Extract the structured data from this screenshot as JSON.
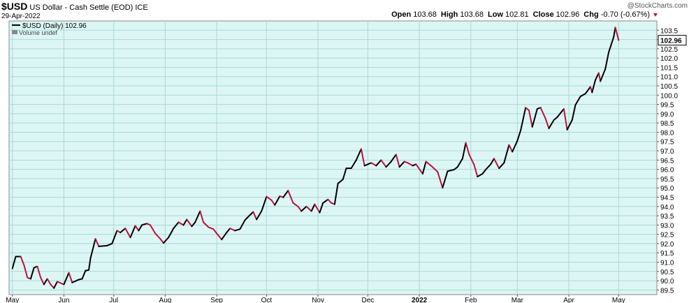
{
  "header": {
    "symbol": "$USD",
    "name": "US Dollar - Cash Settle (EOD) ICE",
    "date": "29-Apr-2022",
    "quote": [
      {
        "label": "Open",
        "value": "103.68"
      },
      {
        "label": "High",
        "value": "103.68"
      },
      {
        "label": "Low",
        "value": "102.81"
      },
      {
        "label": "Close",
        "value": "102.96"
      },
      {
        "label": "Chg",
        "value": "-0.70 (-0.67%)"
      }
    ],
    "watermark": "@StockCharts.com"
  },
  "chart_data": {
    "type": "line",
    "series": [
      {
        "name": "$USD (Daily) 102.96",
        "up_color": "#000000",
        "down_color": "#c0103a",
        "x": [
          0,
          2,
          5,
          7,
          9,
          11,
          13,
          15,
          17,
          19,
          21,
          23,
          25,
          27,
          31,
          34,
          36,
          40,
          42,
          44,
          46,
          47,
          50,
          52,
          57,
          60,
          63,
          65,
          68,
          71,
          74,
          76,
          78,
          81,
          83,
          86,
          89,
          91,
          94,
          97,
          100,
          103,
          105,
          108,
          110,
          113,
          115,
          118,
          121,
          123,
          126,
          129,
          131,
          134,
          137,
          140,
          142,
          145,
          147,
          150,
          153,
          156,
          158,
          161,
          163,
          166,
          169,
          172,
          174,
          177,
          180,
          182,
          185,
          187,
          190,
          192,
          194,
          196,
          199,
          201,
          204,
          207,
          210,
          212,
          216,
          219,
          222,
          225,
          228,
          231,
          233,
          236,
          238,
          241,
          243,
          247,
          249,
          252,
          256,
          259,
          262,
          266,
          268,
          271,
          273,
          275,
          278,
          280,
          283,
          285,
          288,
          290,
          293,
          296,
          299,
          301,
          304,
          306,
          309,
          311,
          313,
          316,
          318,
          321,
          323,
          326,
          328,
          332,
          334,
          337,
          339,
          342,
          345,
          348,
          349,
          351,
          353,
          354,
          357,
          359,
          362,
          363,
          365
        ],
        "values": [
          90.66,
          91.3,
          91.3,
          90.84,
          90.17,
          90.1,
          90.7,
          90.77,
          90.17,
          89.8,
          90.1,
          89.8,
          89.6,
          89.95,
          89.8,
          90.43,
          89.9,
          90.06,
          90.1,
          90.54,
          90.58,
          91.2,
          92.26,
          91.85,
          91.89,
          92.0,
          92.7,
          92.6,
          92.82,
          92.33,
          92.96,
          92.7,
          93.0,
          93.08,
          93.0,
          92.55,
          92.26,
          92.03,
          92.33,
          92.82,
          93.15,
          93.0,
          93.3,
          92.93,
          93.15,
          93.75,
          93.15,
          92.89,
          92.78,
          92.55,
          92.22,
          92.6,
          92.82,
          92.7,
          92.78,
          93.26,
          93.45,
          93.71,
          93.3,
          93.75,
          94.53,
          94.34,
          94.08,
          94.56,
          94.49,
          94.86,
          94.19,
          94.0,
          93.75,
          94.0,
          93.75,
          94.12,
          93.67,
          94.19,
          94.38,
          94.19,
          94.12,
          95.24,
          95.46,
          96.06,
          96.06,
          96.5,
          97.1,
          96.2,
          96.35,
          96.2,
          96.5,
          96.13,
          96.42,
          96.8,
          96.13,
          96.42,
          96.35,
          96.2,
          96.28,
          95.76,
          96.42,
          96.2,
          95.87,
          95.01,
          95.9,
          95.99,
          96.13,
          96.58,
          97.43,
          96.8,
          96.24,
          95.61,
          95.76,
          95.99,
          96.28,
          96.58,
          96.06,
          96.35,
          97.32,
          96.95,
          97.54,
          98.1,
          99.33,
          99.18,
          98.29,
          99.26,
          99.33,
          98.73,
          98.21,
          98.66,
          98.81,
          99.26,
          98.14,
          98.66,
          99.48,
          99.93,
          100.08,
          100.45,
          100.15,
          100.82,
          101.19,
          100.75,
          101.42,
          102.31,
          103.13,
          103.65,
          102.96
        ]
      }
    ],
    "legend_note": "Volume undef",
    "xlim": [
      -2,
      388
    ],
    "xticks": [
      {
        "value": 0,
        "label": "May"
      },
      {
        "value": 31,
        "label": "Jun"
      },
      {
        "value": 61,
        "label": "Jul"
      },
      {
        "value": 92,
        "label": "Aug"
      },
      {
        "value": 123,
        "label": "Sep"
      },
      {
        "value": 153,
        "label": "Oct"
      },
      {
        "value": 184,
        "label": "Nov"
      },
      {
        "value": 214,
        "label": "Dec"
      },
      {
        "value": 245,
        "label": "2022"
      },
      {
        "value": 276,
        "label": "Feb"
      },
      {
        "value": 304,
        "label": "Mar"
      },
      {
        "value": 335,
        "label": "Apr"
      },
      {
        "value": 365,
        "label": "May"
      }
    ],
    "ylim": [
      89.25,
      104.0
    ],
    "yticks": [
      89.5,
      {
        "value": 90,
        "label": "90.0"
      },
      90.5,
      {
        "value": 91,
        "label": "91.0"
      },
      91.5,
      {
        "value": 92,
        "label": "92.0"
      },
      92.5,
      {
        "value": 93,
        "label": "93.0"
      },
      93.5,
      {
        "value": 94,
        "label": "94.0"
      },
      94.5,
      {
        "value": 95,
        "label": "95.0"
      },
      95.5,
      {
        "value": 96,
        "label": "96.0"
      },
      96.5,
      {
        "value": 97,
        "label": "97.0"
      },
      97.5,
      {
        "value": 98,
        "label": "98.0"
      },
      98.5,
      {
        "value": 99,
        "label": "99.0"
      },
      99.5,
      {
        "value": 100,
        "label": "100.0"
      },
      100.5,
      {
        "value": 101,
        "label": "101.0"
      },
      101.5,
      {
        "value": 102,
        "label": "102.0"
      },
      102.5,
      {
        "value": 103,
        "label": "103.0"
      },
      103.5
    ],
    "grid": true,
    "background": "#dcf6f4",
    "grid_color": "#a9d9d6"
  }
}
